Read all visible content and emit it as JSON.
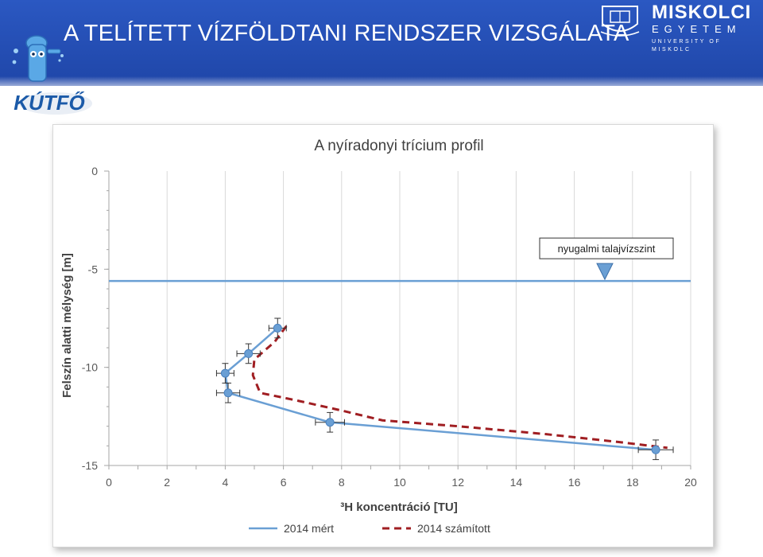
{
  "header": {
    "title": "A TELÍTETT VÍZFÖLDTANI RENDSZER VIZSGÁLATA"
  },
  "logos": {
    "project_logo_text": "KÚTFŐ",
    "university_main": "MISKOLCI",
    "university_sub": "EGYETEM",
    "university_en": "UNIVERSITY OF MISKOLC"
  },
  "colors": {
    "header_blue": "#2350b8",
    "series_measured": "#6a9fd4",
    "series_calculated": "#a01e22",
    "water_level": "#6a9fd4"
  },
  "chart_data": {
    "type": "line",
    "title": "A nyíradonyi trícium profil",
    "xlabel": "³H koncentráció [TU]",
    "ylabel": "Felszín alatti mélység [m]",
    "xlim": [
      0,
      20
    ],
    "ylim": [
      -15,
      0
    ],
    "x_ticks": [
      "0",
      "2",
      "4",
      "6",
      "8",
      "10",
      "12",
      "14",
      "16",
      "18",
      "20"
    ],
    "y_ticks": [
      "0",
      "-5",
      "-10",
      "-15"
    ],
    "grid": "vertical",
    "legend": "bottom",
    "series": [
      {
        "name": "2014 mért",
        "style": "solid",
        "markers": true,
        "x": [
          5.8,
          4.8,
          4.0,
          4.1,
          7.6,
          18.8
        ],
        "y": [
          -8.0,
          -9.3,
          -10.3,
          -11.3,
          -12.8,
          -14.2
        ],
        "x_err": [
          0.3,
          0.4,
          0.3,
          0.4,
          0.5,
          0.6
        ],
        "y_err": [
          0.5,
          0.5,
          0.5,
          0.5,
          0.5,
          0.5
        ]
      },
      {
        "name": "2014 számított",
        "style": "dashed",
        "markers": false,
        "x": [
          6.1,
          5.7,
          5.0,
          4.95,
          5.2,
          6.5,
          8.0,
          9.4,
          12.0,
          15.0,
          17.5,
          19.2
        ],
        "y": [
          -7.9,
          -8.7,
          -9.6,
          -10.4,
          -11.3,
          -11.7,
          -12.2,
          -12.7,
          -13.0,
          -13.4,
          -13.8,
          -14.1
        ]
      }
    ],
    "annotations": [
      {
        "text": "nyugalmi talajvízszint",
        "y": -5.6
      }
    ]
  }
}
